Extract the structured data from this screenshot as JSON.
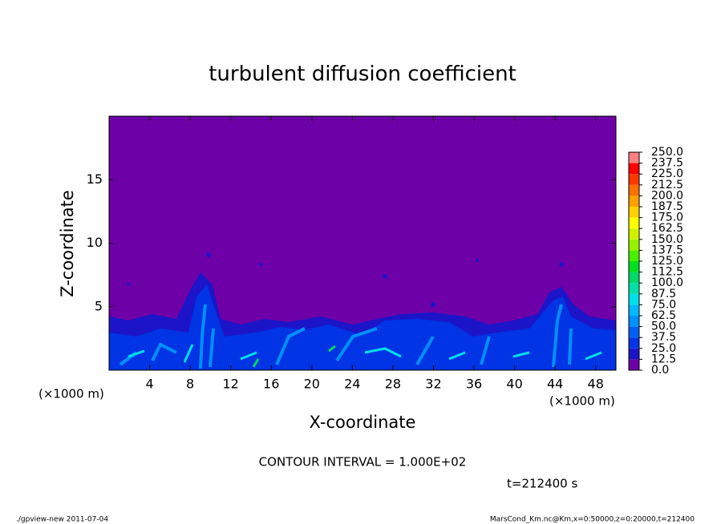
{
  "chart_data": {
    "type": "contour",
    "title": "turbulent diffusion coefficient",
    "xlabel": "X-coordinate",
    "ylabel": "Z-coordinate",
    "xunit": "(×1000 m)",
    "yunit": "(×1000 m)",
    "xlim": [
      0,
      50
    ],
    "ylim": [
      0,
      20
    ],
    "xticks": [
      4,
      8,
      12,
      16,
      20,
      24,
      28,
      32,
      36,
      40,
      44,
      48
    ],
    "yticks": [
      5,
      10,
      15
    ],
    "levels": [
      {
        "value": 0,
        "label": "0.0"
      },
      {
        "value": 12.5,
        "label": "12.5"
      },
      {
        "value": 25,
        "label": "25.0"
      },
      {
        "value": 37.5,
        "label": "37.5"
      },
      {
        "value": 50,
        "label": "50.0"
      },
      {
        "value": 62.5,
        "label": "62.5"
      },
      {
        "value": 75,
        "label": "75.0"
      },
      {
        "value": 87.5,
        "label": "87.5"
      },
      {
        "value": 100,
        "label": "100.0"
      },
      {
        "value": 112.5,
        "label": "112.5"
      },
      {
        "value": 125,
        "label": "125.0"
      },
      {
        "value": 137.5,
        "label": "137.5"
      },
      {
        "value": 150,
        "label": "150.0"
      },
      {
        "value": 162.5,
        "label": "162.5"
      },
      {
        "value": 175,
        "label": "175.0"
      },
      {
        "value": 187.5,
        "label": "187.5"
      },
      {
        "value": 200,
        "label": "200.0"
      },
      {
        "value": 212.5,
        "label": "212.5"
      },
      {
        "value": 225,
        "label": "225.0"
      },
      {
        "value": 237.5,
        "label": "237.5"
      },
      {
        "value": 250,
        "label": "250.0"
      }
    ],
    "colors": [
      "#6e00a8",
      "#1c14c8",
      "#0034e4",
      "#0060f4",
      "#0090ff",
      "#00b8ff",
      "#00e0e8",
      "#00e0a8",
      "#00d868",
      "#00e020",
      "#48f000",
      "#98f000",
      "#d0f000",
      "#ffff00",
      "#ffd000",
      "#ffa000",
      "#ff7000",
      "#ff3800",
      "#ff0000",
      "#ff8080"
    ],
    "annotations": [
      "CONTOUR INTERVAL = 1.000E+02",
      "t=212400 s"
    ],
    "footer_left": "./gpview-new  2011-07-04",
    "footer_right": "MarsCond_Km.nc@Km,x=0:50000,z=0:20000,t=212400"
  }
}
